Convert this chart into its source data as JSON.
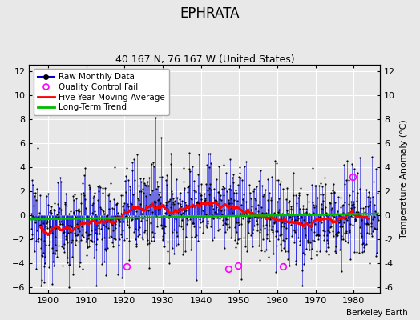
{
  "title": "EPHRATA",
  "subtitle": "40.167 N, 76.167 W (United States)",
  "ylabel_right": "Temperature Anomaly (°C)",
  "credit": "Berkeley Earth",
  "xlim": [
    1895,
    1987
  ],
  "ylim": [
    -6.5,
    12.5
  ],
  "yticks": [
    -6,
    -4,
    -2,
    0,
    2,
    4,
    6,
    8,
    10,
    12
  ],
  "xticks": [
    1900,
    1910,
    1920,
    1930,
    1940,
    1950,
    1960,
    1970,
    1980
  ],
  "seed": 12345,
  "start_year": 1895.5,
  "n_months": 1092,
  "noise_std": 2.0,
  "moving_avg_window": 60,
  "raw_color": "#0000dd",
  "raw_dot_color": "#000000",
  "qc_fail_color": "#ff00ff",
  "moving_avg_color": "#ff0000",
  "trend_color": "#00bb00",
  "plot_bg_color": "#e8e8e8",
  "fig_bg_color": "#e8e8e8",
  "grid_color": "#ffffff",
  "title_fontsize": 12,
  "subtitle_fontsize": 9,
  "tick_fontsize": 8,
  "ylabel_fontsize": 8,
  "legend_fontsize": 7.5,
  "qc_points": [
    [
      1920.5,
      -4.3
    ],
    [
      1947.2,
      -4.5
    ],
    [
      1949.7,
      -4.2
    ],
    [
      1961.5,
      -4.3
    ],
    [
      1979.8,
      3.2
    ]
  ]
}
